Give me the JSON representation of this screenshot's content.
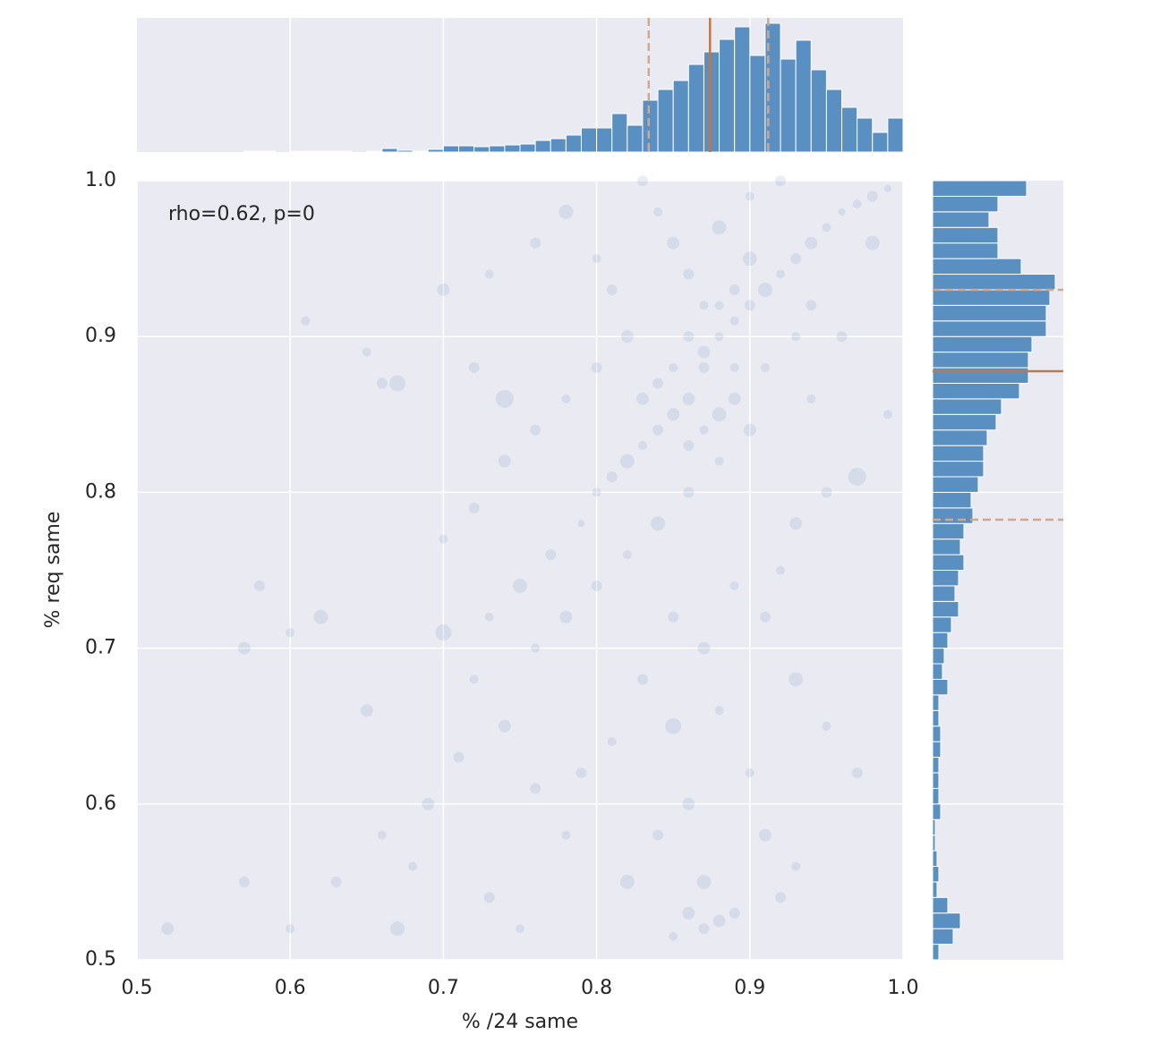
{
  "chart_data": [
    {
      "type": "scatter",
      "xlabel": "% /24 same",
      "ylabel": "% req same",
      "annotation": "rho=0.62, p=0",
      "color": "#4c72b0",
      "alpha": 0.12,
      "grid": true,
      "xlim": [
        0.5,
        1.0
      ],
      "ylim": [
        0.5,
        1.0
      ],
      "xticks": [
        0.5,
        0.6,
        0.7,
        0.8,
        0.9,
        {
          "value": 1,
          "label": "1.0"
        }
      ],
      "yticks": [
        0.5,
        0.6,
        0.7,
        0.8,
        0.9,
        {
          "value": 1,
          "label": "1.0"
        }
      ],
      "x": [
        0.88,
        0.87,
        0.86,
        0.89,
        0.9,
        0.91,
        0.92,
        0.93,
        0.94,
        0.95,
        0.96,
        0.97,
        0.98,
        0.99,
        0.85,
        0.84,
        0.83,
        0.82,
        0.81,
        0.8,
        0.87,
        0.86,
        0.85,
        0.84,
        0.83,
        0.88,
        0.9,
        0.92,
        0.89,
        0.91,
        0.93,
        0.94,
        0.9,
        0.88,
        0.86,
        0.84,
        0.82,
        0.8,
        0.78,
        0.76,
        0.79,
        0.77,
        0.75,
        0.73,
        0.85,
        0.87,
        0.89,
        0.83,
        0.85,
        0.88,
        0.81,
        0.79,
        0.86,
        0.9,
        0.84,
        0.87,
        0.86,
        0.87,
        0.88,
        0.85,
        0.89,
        0.82,
        0.78,
        0.76,
        0.74,
        0.72,
        0.7,
        0.71,
        0.69,
        0.68,
        0.73,
        0.75,
        0.65,
        0.66,
        0.63,
        0.62,
        0.6,
        0.58,
        0.57,
        0.61,
        0.66,
        0.67,
        0.65,
        0.72,
        0.7,
        0.73,
        0.76,
        0.78,
        0.8,
        0.81,
        0.82,
        0.8,
        0.78,
        0.76,
        0.74,
        0.99,
        0.97,
        0.95,
        0.93,
        0.92,
        0.91,
        0.93,
        0.95,
        0.97,
        0.91,
        0.93,
        0.92,
        0.67,
        0.6,
        0.57,
        0.52,
        0.7,
        0.72,
        0.74,
        0.94,
        0.96,
        0.98,
        0.86,
        0.87,
        0.88,
        0.89,
        0.9,
        0.85,
        0.84,
        0.83,
        0.87,
        0.86,
        0.88,
        0.89
      ],
      "values": [
        0.9,
        0.88,
        0.86,
        0.91,
        0.92,
        0.93,
        0.94,
        0.95,
        0.96,
        0.97,
        0.98,
        0.985,
        0.99,
        0.995,
        0.85,
        0.84,
        0.83,
        0.82,
        0.81,
        0.8,
        0.92,
        0.94,
        0.96,
        0.98,
        1.0,
        0.97,
        0.99,
        1.0,
        0.86,
        0.88,
        0.9,
        0.92,
        0.84,
        0.82,
        0.8,
        0.78,
        0.76,
        0.74,
        0.72,
        0.7,
        0.78,
        0.76,
        0.74,
        0.72,
        0.72,
        0.7,
        0.74,
        0.68,
        0.65,
        0.66,
        0.64,
        0.62,
        0.6,
        0.62,
        0.58,
        0.55,
        0.53,
        0.52,
        0.525,
        0.515,
        0.53,
        0.55,
        0.58,
        0.61,
        0.65,
        0.68,
        0.71,
        0.63,
        0.6,
        0.56,
        0.54,
        0.52,
        0.66,
        0.58,
        0.55,
        0.72,
        0.71,
        0.74,
        0.7,
        0.91,
        0.87,
        0.87,
        0.89,
        0.88,
        0.93,
        0.94,
        0.96,
        0.98,
        0.95,
        0.93,
        0.9,
        0.88,
        0.86,
        0.84,
        0.82,
        0.85,
        0.81,
        0.8,
        0.78,
        0.75,
        0.72,
        0.68,
        0.65,
        0.62,
        0.58,
        0.56,
        0.54,
        0.52,
        0.52,
        0.55,
        0.52,
        0.77,
        0.79,
        0.86,
        0.86,
        0.9,
        0.96,
        0.9,
        0.89,
        0.92,
        0.93,
        0.95,
        0.88,
        0.87,
        0.86,
        0.84,
        0.83,
        0.85,
        0.88
      ],
      "sizes": [
        5,
        6,
        7,
        5,
        6,
        8,
        5,
        6,
        7,
        5,
        4,
        5,
        6,
        4,
        7,
        6,
        5,
        8,
        6,
        5,
        5,
        6,
        7,
        5,
        6,
        8,
        5,
        6,
        7,
        5,
        5,
        6,
        7,
        5,
        6,
        8,
        5,
        6,
        7,
        5,
        4,
        6,
        8,
        5,
        6,
        7,
        5,
        6,
        9,
        5,
        5,
        6,
        7,
        5,
        6,
        8,
        7,
        6,
        7,
        5,
        6,
        8,
        5,
        6,
        7,
        5,
        9,
        6,
        7,
        5,
        6,
        5,
        7,
        5,
        6,
        8,
        5,
        6,
        7,
        5,
        6,
        9,
        5,
        6,
        7,
        5,
        6,
        8,
        5,
        6,
        7,
        6,
        5,
        6,
        7,
        5,
        10,
        6,
        7,
        5,
        6,
        8,
        5,
        6,
        7,
        5,
        6,
        8,
        5,
        6,
        7,
        5,
        6,
        10,
        5,
        6,
        8,
        6,
        7,
        5,
        6,
        8,
        5,
        6,
        7,
        5,
        6,
        8,
        5
      ]
    },
    {
      "type": "histogram",
      "orientation": "vertical",
      "color": "#5a8fc2",
      "xlim": [
        0.5,
        1.0
      ],
      "ylim": [
        0,
        150
      ],
      "xticks": [
        0.6,
        0.7,
        0.8,
        0.9
      ],
      "grid": true,
      "bins": [
        0.5,
        0.51,
        0.52,
        0.53,
        0.54,
        0.55,
        0.56,
        0.57,
        0.58,
        0.59,
        0.6,
        0.61,
        0.62,
        0.63,
        0.64,
        0.65,
        0.66,
        0.67,
        0.68,
        0.69,
        0.7,
        0.71,
        0.72,
        0.73,
        0.74,
        0.75,
        0.76,
        0.77,
        0.78,
        0.79,
        0.8,
        0.81,
        0.82,
        0.83,
        0.84,
        0.85,
        0.86,
        0.87,
        0.88,
        0.89,
        0.9,
        0.91,
        0.92,
        0.93,
        0.94,
        0.95,
        0.96,
        0.97,
        0.98,
        0.99,
        1.0
      ],
      "counts": [
        0,
        0,
        0,
        0,
        0,
        0,
        0,
        1,
        1,
        0,
        1,
        1,
        1,
        1,
        0,
        1,
        4,
        2,
        1,
        3,
        7,
        7,
        6,
        7,
        8,
        9,
        13,
        15,
        19,
        27,
        27,
        43,
        30,
        58,
        70,
        80,
        98,
        112,
        126,
        140,
        108,
        144,
        104,
        125,
        92,
        70,
        50,
        38,
        22,
        38
      ],
      "lines": [
        {
          "value": 0.834,
          "style": "dashed",
          "color": "#d4a68a"
        },
        {
          "value": 0.874,
          "style": "solid",
          "color": "#c0784a"
        },
        {
          "value": 0.912,
          "style": "dashed",
          "color": "#d4a68a"
        }
      ]
    },
    {
      "type": "histogram",
      "orientation": "horizontal",
      "color": "#5a8fc2",
      "ylim": [
        0.5,
        1.0
      ],
      "xlim": [
        0,
        146
      ],
      "yticks": [
        0.6,
        0.7,
        0.8,
        0.9
      ],
      "grid": true,
      "bins": [
        0.5,
        0.51,
        0.52,
        0.53,
        0.54,
        0.55,
        0.56,
        0.57,
        0.58,
        0.59,
        0.6,
        0.61,
        0.62,
        0.63,
        0.64,
        0.65,
        0.66,
        0.67,
        0.68,
        0.69,
        0.7,
        0.71,
        0.72,
        0.73,
        0.74,
        0.75,
        0.76,
        0.77,
        0.78,
        0.79,
        0.8,
        0.81,
        0.82,
        0.83,
        0.84,
        0.85,
        0.86,
        0.87,
        0.88,
        0.89,
        0.9,
        0.91,
        0.92,
        0.93,
        0.94,
        0.95,
        0.96,
        0.97,
        0.98,
        0.99,
        1.0
      ],
      "counts": [
        7,
        23,
        31,
        17,
        5,
        7,
        5,
        3,
        3,
        9,
        7,
        7,
        7,
        9,
        9,
        7,
        7,
        17,
        11,
        13,
        17,
        21,
        29,
        25,
        29,
        35,
        31,
        35,
        45,
        43,
        51,
        57,
        57,
        61,
        71,
        77,
        97,
        107,
        107,
        111,
        127,
        127,
        131,
        137,
        99,
        73,
        73,
        63,
        73,
        105
      ],
      "lines": [
        {
          "value": 0.7824,
          "style": "dashed",
          "color": "#d4a68a"
        },
        {
          "value": 0.8777,
          "style": "solid",
          "color": "#c0784a"
        },
        {
          "value": 0.93,
          "style": "dashed",
          "color": "#d4a68a"
        }
      ]
    }
  ]
}
